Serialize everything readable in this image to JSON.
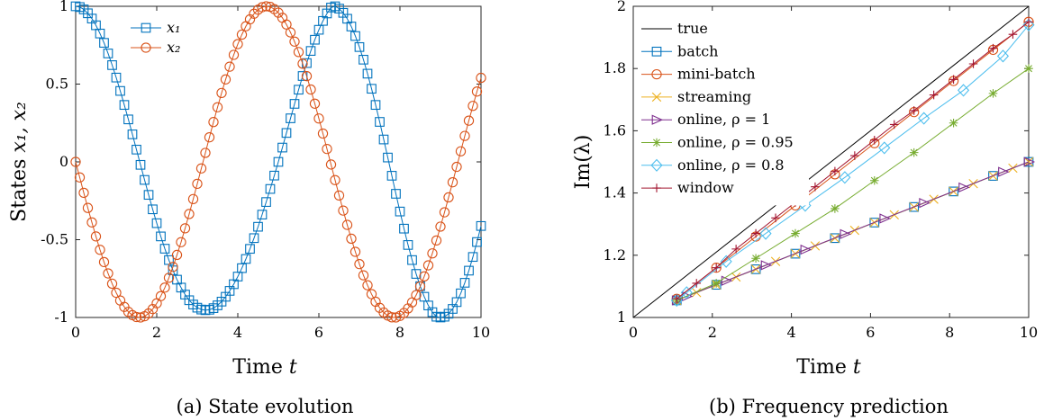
{
  "chart_data": [
    {
      "type": "line",
      "caption": "(a) State evolution",
      "xlabel_prefix": "Time ",
      "xlabel_var": "t",
      "ylabel_prefix": "States ",
      "ylabel_vars": "x₁, x₂",
      "xlim": [
        0,
        10
      ],
      "ylim": [
        -1,
        1
      ],
      "xticks": [
        0,
        2,
        4,
        6,
        8,
        10
      ],
      "xtick_labels": [
        "0",
        "2",
        "4",
        "6",
        "8",
        "10"
      ],
      "yticks": [
        -1,
        -0.5,
        0,
        0.5,
        1
      ],
      "ytick_labels": [
        "-1",
        "-0.5",
        "0",
        "0.5",
        "1"
      ],
      "grid": false,
      "legend_position": "top-left",
      "x": [
        0.0,
        0.1,
        0.2,
        0.3,
        0.4,
        0.5,
        0.6,
        0.7,
        0.8,
        0.9,
        1.0,
        1.1,
        1.2,
        1.3,
        1.4,
        1.5,
        1.6,
        1.7,
        1.8,
        1.9,
        2.0,
        2.1,
        2.2,
        2.3,
        2.4,
        2.5,
        2.6,
        2.7,
        2.8,
        2.9,
        3.0,
        3.1,
        3.2,
        3.3,
        3.4,
        3.5,
        3.6,
        3.7,
        3.8,
        3.9,
        4.0,
        4.1,
        4.2,
        4.3,
        4.4,
        4.5,
        4.6,
        4.7,
        4.8,
        4.9,
        5.0,
        5.1,
        5.2,
        5.3,
        5.4,
        5.5,
        5.6,
        5.7,
        5.8,
        5.9,
        6.0,
        6.1,
        6.2,
        6.3,
        6.4,
        6.5,
        6.6,
        6.7,
        6.8,
        6.9,
        7.0,
        7.1,
        7.2,
        7.3,
        7.4,
        7.5,
        7.6,
        7.7,
        7.8,
        7.9,
        8.0,
        8.1,
        8.2,
        8.3,
        8.4,
        8.5,
        8.6,
        8.7,
        8.8,
        8.9,
        9.0,
        9.1,
        9.2,
        9.3,
        9.4,
        9.5,
        9.6,
        9.7,
        9.8,
        9.9,
        10.0
      ],
      "series": [
        {
          "name": "x₁",
          "color": "#0072BD",
          "marker": "square",
          "values": [
            1.0,
            0.995,
            0.98,
            0.955,
            0.921,
            0.878,
            0.825,
            0.765,
            0.697,
            0.622,
            0.542,
            0.456,
            0.366,
            0.273,
            0.177,
            0.079,
            -0.019,
            -0.116,
            -0.212,
            -0.305,
            -0.394,
            -0.479,
            -0.558,
            -0.631,
            -0.697,
            -0.757,
            -0.808,
            -0.853,
            -0.889,
            -0.917,
            -0.937,
            -0.949,
            -0.953,
            -0.95,
            -0.94,
            -0.922,
            -0.898,
            -0.867,
            -0.829,
            -0.786,
            -0.737,
            -0.683,
            -0.624,
            -0.559,
            -0.49,
            -0.417,
            -0.339,
            -0.258,
            -0.174,
            -0.088,
            0.0,
            0.092,
            0.186,
            0.28,
            0.373,
            0.464,
            0.552,
            0.635,
            0.713,
            0.785,
            0.849,
            0.906,
            0.954,
            0.992,
            1.0,
            0.985,
            0.958,
            0.92,
            0.87,
            0.809,
            0.738,
            0.657,
            0.567,
            0.47,
            0.366,
            0.257,
            0.144,
            0.028,
            -0.089,
            -0.205,
            -0.319,
            -0.429,
            -0.534,
            -0.631,
            -0.72,
            -0.799,
            -0.867,
            -0.923,
            -0.966,
            -0.995,
            -1.0,
            -0.995,
            -0.976,
            -0.945,
            -0.901,
            -0.845,
            -0.777,
            -0.699,
            -0.611,
            -0.515,
            -0.412
          ]
        },
        {
          "name": "x₂",
          "color": "#D95319",
          "marker": "circle",
          "values": [
            0.0,
            -0.1,
            -0.199,
            -0.296,
            -0.389,
            -0.479,
            -0.565,
            -0.644,
            -0.717,
            -0.783,
            -0.841,
            -0.891,
            -0.932,
            -0.964,
            -0.985,
            -0.997,
            -1.0,
            -0.992,
            -0.974,
            -0.946,
            -0.909,
            -0.863,
            -0.808,
            -0.745,
            -0.675,
            -0.598,
            -0.516,
            -0.427,
            -0.335,
            -0.239,
            -0.141,
            -0.042,
            0.058,
            0.158,
            0.256,
            0.351,
            0.443,
            0.53,
            0.612,
            0.688,
            0.757,
            0.818,
            0.872,
            0.916,
            0.952,
            0.978,
            0.994,
            1.0,
            0.996,
            0.982,
            0.959,
            0.926,
            0.883,
            0.832,
            0.773,
            0.706,
            0.631,
            0.551,
            0.465,
            0.374,
            0.279,
            0.182,
            0.083,
            -0.017,
            -0.117,
            -0.216,
            -0.313,
            -0.405,
            -0.494,
            -0.578,
            -0.657,
            -0.729,
            -0.793,
            -0.85,
            -0.899,
            -0.938,
            -0.968,
            -0.988,
            -0.999,
            -1.0,
            -0.99,
            -0.971,
            -0.942,
            -0.903,
            -0.856,
            -0.8,
            -0.736,
            -0.665,
            -0.588,
            -0.505,
            -0.416,
            -0.324,
            -0.228,
            -0.131,
            -0.032,
            0.068,
            0.167,
            0.265,
            0.36,
            0.452,
            0.54
          ]
        }
      ]
    },
    {
      "type": "line",
      "caption": "(b) Frequency prediction",
      "xlabel_prefix": "Time ",
      "xlabel_var": "t",
      "ylabel": "Im(λ)",
      "xlim": [
        0,
        10
      ],
      "ylim": [
        1,
        2
      ],
      "xticks": [
        0,
        2,
        4,
        6,
        8,
        10
      ],
      "xtick_labels": [
        "0",
        "2",
        "4",
        "6",
        "8",
        "10"
      ],
      "yticks": [
        1,
        1.2,
        1.4,
        1.6,
        1.8,
        2
      ],
      "ytick_labels": [
        "1",
        "1.2",
        "1.4",
        "1.6",
        "1.8",
        "2"
      ],
      "grid": false,
      "legend_position": "top-left",
      "series": [
        {
          "name": "true",
          "color": "#000000",
          "marker": "none",
          "x": [
            0.0,
            10.0
          ],
          "values": [
            1.0,
            2.0
          ]
        },
        {
          "name": "batch",
          "color": "#0072BD",
          "marker": "square",
          "x": [
            1.1,
            2.1,
            3.1,
            4.1,
            5.1,
            6.1,
            7.1,
            8.1,
            9.1,
            10.0
          ],
          "values": [
            1.055,
            1.105,
            1.155,
            1.205,
            1.255,
            1.305,
            1.355,
            1.405,
            1.455,
            1.5
          ]
        },
        {
          "name": "mini-batch",
          "color": "#D95319",
          "marker": "circle",
          "x": [
            1.1,
            2.1,
            3.1,
            4.1,
            5.1,
            6.1,
            7.1,
            8.1,
            9.1,
            10.0
          ],
          "values": [
            1.06,
            1.16,
            1.26,
            1.36,
            1.46,
            1.56,
            1.66,
            1.76,
            1.86,
            1.95
          ]
        },
        {
          "name": "streaming",
          "color": "#EDB120",
          "marker": "cross",
          "x": [
            1.1,
            1.6,
            2.1,
            2.6,
            3.1,
            3.6,
            4.1,
            4.6,
            5.1,
            5.6,
            6.1,
            6.6,
            7.1,
            7.6,
            8.1,
            8.6,
            9.1,
            9.6,
            10.0
          ],
          "values": [
            1.055,
            1.08,
            1.105,
            1.13,
            1.155,
            1.18,
            1.205,
            1.23,
            1.255,
            1.28,
            1.305,
            1.33,
            1.355,
            1.38,
            1.405,
            1.43,
            1.455,
            1.48,
            1.5
          ]
        },
        {
          "name": "online, ρ = 1",
          "color": "#7E2F8E",
          "marker": "triangle-right",
          "x": [
            1.1,
            1.35,
            2.35,
            3.35,
            4.35,
            5.35,
            6.35,
            7.35,
            8.35,
            9.35,
            10.0
          ],
          "values": [
            1.055,
            1.068,
            1.118,
            1.168,
            1.218,
            1.268,
            1.318,
            1.368,
            1.418,
            1.468,
            1.5
          ]
        },
        {
          "name": "online, ρ = 0.95",
          "color": "#77AC30",
          "marker": "asterisk",
          "x": [
            1.1,
            2.1,
            3.1,
            4.1,
            5.1,
            6.1,
            7.1,
            8.1,
            9.1,
            10.0
          ],
          "values": [
            1.055,
            1.11,
            1.19,
            1.27,
            1.35,
            1.44,
            1.53,
            1.625,
            1.72,
            1.8
          ]
        },
        {
          "name": "online, ρ = 0.8",
          "color": "#4DBEEE",
          "marker": "diamond",
          "x": [
            1.1,
            1.35,
            2.35,
            3.35,
            4.35,
            5.35,
            6.35,
            7.35,
            8.35,
            9.35,
            10.0
          ],
          "values": [
            1.055,
            1.08,
            1.18,
            1.27,
            1.36,
            1.45,
            1.545,
            1.64,
            1.73,
            1.84,
            1.94
          ]
        },
        {
          "name": "window",
          "color": "#A2142F",
          "marker": "plus",
          "x": [
            1.1,
            1.6,
            2.1,
            2.6,
            3.1,
            3.6,
            4.1,
            4.6,
            5.1,
            5.6,
            6.1,
            6.6,
            7.1,
            7.6,
            8.1,
            8.6,
            9.1,
            9.6,
            10.0
          ],
          "values": [
            1.06,
            1.11,
            1.16,
            1.22,
            1.27,
            1.32,
            1.37,
            1.42,
            1.47,
            1.52,
            1.57,
            1.62,
            1.665,
            1.715,
            1.765,
            1.815,
            1.865,
            1.91,
            1.95
          ]
        }
      ]
    }
  ]
}
